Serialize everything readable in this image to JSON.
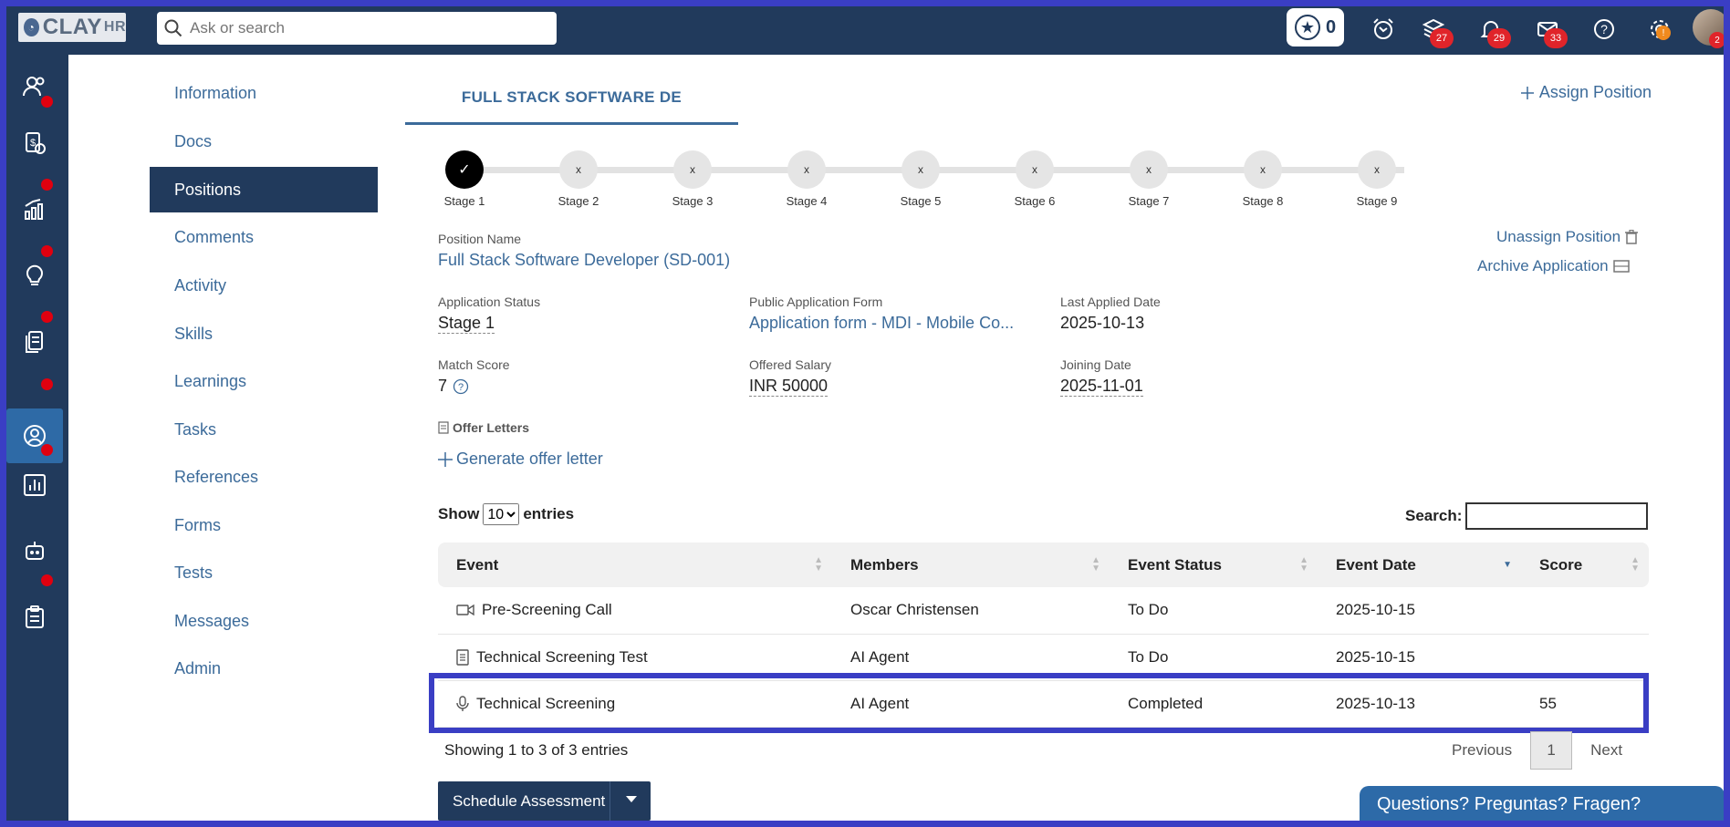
{
  "topbar": {
    "logo_text": "CLAY",
    "logo_suffix": "HR",
    "search_placeholder": "Ask or search",
    "stars_count": "0",
    "stack_badge": "27",
    "bell_badge": "29",
    "mail_badge": "33",
    "gear_badge": "!",
    "avatar_badge": "2"
  },
  "subnav": {
    "items": [
      {
        "label": "Information"
      },
      {
        "label": "Docs"
      },
      {
        "label": "Positions"
      },
      {
        "label": "Comments"
      },
      {
        "label": "Activity"
      },
      {
        "label": "Skills"
      },
      {
        "label": "Learnings"
      },
      {
        "label": "Tasks"
      },
      {
        "label": "References"
      },
      {
        "label": "Forms"
      },
      {
        "label": "Tests"
      },
      {
        "label": "Messages"
      },
      {
        "label": "Admin"
      }
    ],
    "active": "Positions"
  },
  "main": {
    "tab_title": "FULL STACK SOFTWARE DE",
    "assign_position": "Assign Position",
    "stages": [
      {
        "label": "Stage 1",
        "mark": "✓",
        "done": true
      },
      {
        "label": "Stage 2",
        "mark": "x"
      },
      {
        "label": "Stage 3",
        "mark": "x"
      },
      {
        "label": "Stage 4",
        "mark": "x"
      },
      {
        "label": "Stage 5",
        "mark": "x"
      },
      {
        "label": "Stage 6",
        "mark": "x"
      },
      {
        "label": "Stage 7",
        "mark": "x"
      },
      {
        "label": "Stage 8",
        "mark": "x"
      },
      {
        "label": "Stage 9",
        "mark": "x"
      }
    ],
    "position_name_label": "Position Name",
    "position_name": "Full Stack Software Developer (SD-001)",
    "unassign_position": "Unassign Position",
    "archive_application": "Archive Application",
    "application_status_label": "Application Status",
    "application_status": "Stage 1",
    "public_form_label": "Public Application Form",
    "public_form": "Application form - MDI - Mobile Co...",
    "last_applied_label": "Last Applied Date",
    "last_applied": "2025-10-13",
    "match_score_label": "Match Score",
    "match_score": "7",
    "offered_salary_label": "Offered Salary",
    "offered_salary": "INR 50000",
    "joining_date_label": "Joining Date",
    "joining_date": "2025-11-01",
    "offer_letters_label": "Offer Letters",
    "generate_offer": "Generate offer letter"
  },
  "table": {
    "show_label": "Show",
    "entries_label": "entries",
    "page_size": "10",
    "search_label": "Search:",
    "columns": [
      "Event",
      "Members",
      "Event Status",
      "Event Date",
      "Score"
    ],
    "rows": [
      {
        "event": "Pre-Screening Call",
        "icon": "video-icon",
        "members": "Oscar Christensen",
        "status": "To Do",
        "date": "2025-10-15",
        "score": ""
      },
      {
        "event": "Technical Screening Test",
        "icon": "document-icon",
        "members": "AI Agent",
        "status": "To Do",
        "date": "2025-10-15",
        "score": ""
      },
      {
        "event": "Technical Screening",
        "icon": "microphone-icon",
        "members": "AI Agent",
        "status": "Completed",
        "date": "2025-10-13",
        "score": "55"
      }
    ],
    "showing_text": "Showing 1 to 3 of 3 entries",
    "prev_label": "Previous",
    "current_page": "1",
    "next_label": "Next"
  },
  "actions": {
    "schedule_assessment": "Schedule Assessment"
  },
  "help": {
    "chat_label": "Questions? Preguntas? Fragen?"
  },
  "colors": {
    "navy": "#213a5c",
    "link": "#3c6b9a",
    "highlight": "#3a3ec4",
    "todo": "#c0201d",
    "completed": "#2e8b2e"
  }
}
